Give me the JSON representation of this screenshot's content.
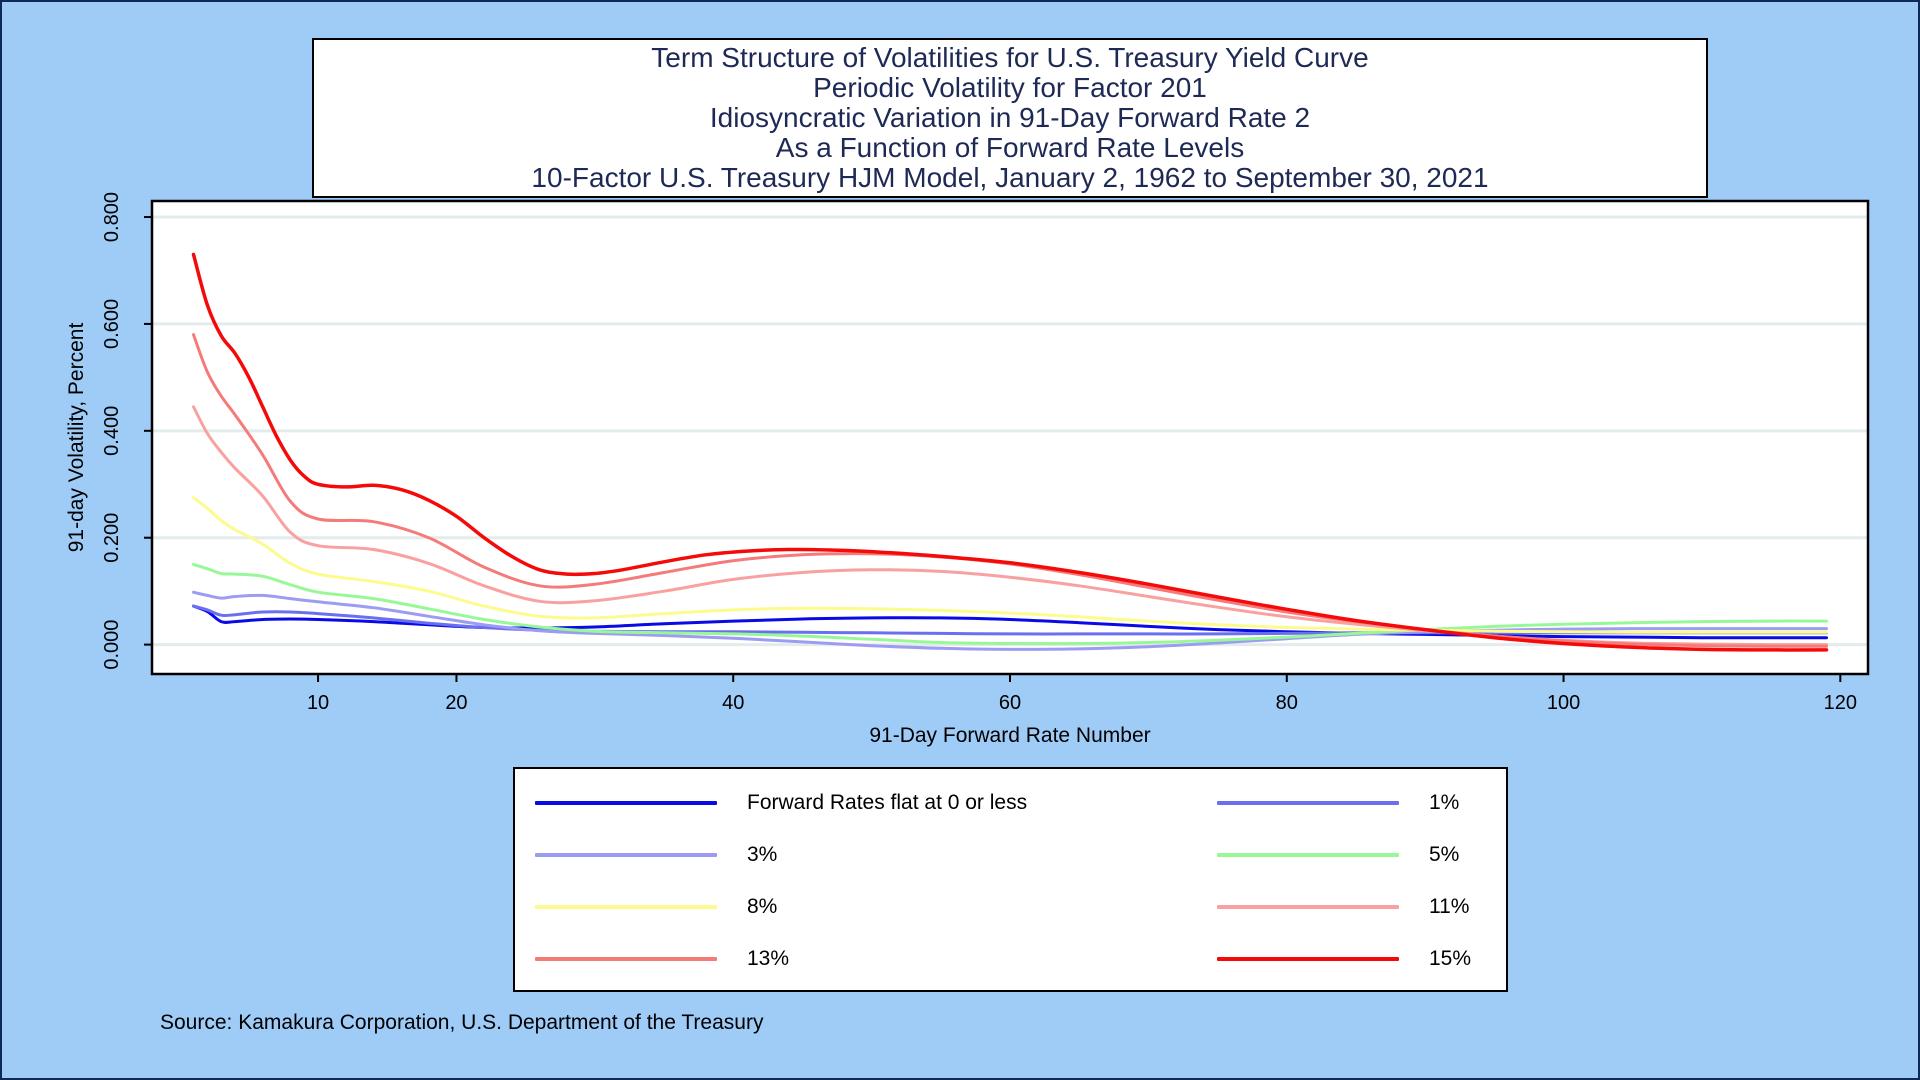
{
  "title_lines": [
    "Term Structure of Volatilities for U.S. Treasury Yield Curve",
    "Periodic Volatility for Factor 201",
    "Idiosyncratic Variation in 91-Day Forward Rate 2",
    "As a Function of Forward Rate Levels",
    "10-Factor U.S. Treasury HJM Model, January 2, 1962 to September 30, 2021"
  ],
  "source": "Source: Kamakura Corporation, U.S. Department of the Treasury",
  "chart_data": {
    "type": "line",
    "xlabel": "91-Day Forward Rate Number",
    "ylabel": "91-day Volatility, Percent",
    "xlim": [
      -2,
      122
    ],
    "ylim": [
      -0.055,
      0.83
    ],
    "xticks": [
      10,
      20,
      40,
      60,
      80,
      100,
      120
    ],
    "yticks": [
      0.0,
      0.2,
      0.4,
      0.6,
      0.8
    ],
    "ytick_labels": [
      "0.000",
      "0.200",
      "0.400",
      "0.600",
      "0.800"
    ],
    "grid": "horizontal",
    "legend_position": "bottom",
    "series": [
      {
        "name": "Forward Rates flat at 0 or less",
        "color": "#0a0ae6",
        "width": 3,
        "points": [
          [
            1,
            0.072
          ],
          [
            2,
            0.062
          ],
          [
            3,
            0.043
          ],
          [
            4,
            0.043
          ],
          [
            6,
            0.047
          ],
          [
            8,
            0.048
          ],
          [
            10,
            0.047
          ],
          [
            14,
            0.043
          ],
          [
            18,
            0.037
          ],
          [
            22,
            0.032
          ],
          [
            26,
            0.031
          ],
          [
            30,
            0.033
          ],
          [
            35,
            0.039
          ],
          [
            40,
            0.044
          ],
          [
            45,
            0.048
          ],
          [
            50,
            0.05
          ],
          [
            55,
            0.05
          ],
          [
            60,
            0.047
          ],
          [
            65,
            0.041
          ],
          [
            70,
            0.034
          ],
          [
            75,
            0.028
          ],
          [
            80,
            0.024
          ],
          [
            85,
            0.021
          ],
          [
            90,
            0.019
          ],
          [
            95,
            0.017
          ],
          [
            100,
            0.015
          ],
          [
            105,
            0.014
          ],
          [
            110,
            0.013
          ],
          [
            115,
            0.013
          ],
          [
            119,
            0.013
          ]
        ]
      },
      {
        "name": "1%",
        "color": "#6a6ef0",
        "width": 3,
        "points": [
          [
            1,
            0.072
          ],
          [
            2,
            0.065
          ],
          [
            3,
            0.055
          ],
          [
            4,
            0.056
          ],
          [
            6,
            0.061
          ],
          [
            8,
            0.061
          ],
          [
            10,
            0.058
          ],
          [
            14,
            0.05
          ],
          [
            18,
            0.04
          ],
          [
            22,
            0.032
          ],
          [
            26,
            0.027
          ],
          [
            30,
            0.025
          ],
          [
            35,
            0.024
          ],
          [
            40,
            0.024
          ],
          [
            45,
            0.023
          ],
          [
            50,
            0.022
          ],
          [
            55,
            0.021
          ],
          [
            60,
            0.02
          ],
          [
            65,
            0.02
          ],
          [
            70,
            0.02
          ],
          [
            75,
            0.02
          ],
          [
            80,
            0.021
          ],
          [
            85,
            0.022
          ],
          [
            90,
            0.022
          ],
          [
            95,
            0.022
          ],
          [
            100,
            0.022
          ],
          [
            105,
            0.022
          ],
          [
            110,
            0.022
          ],
          [
            115,
            0.022
          ],
          [
            119,
            0.022
          ]
        ]
      },
      {
        "name": "3%",
        "color": "#9d9cf3",
        "width": 3,
        "points": [
          [
            1,
            0.098
          ],
          [
            2,
            0.092
          ],
          [
            3,
            0.087
          ],
          [
            4,
            0.09
          ],
          [
            6,
            0.092
          ],
          [
            8,
            0.086
          ],
          [
            10,
            0.08
          ],
          [
            14,
            0.069
          ],
          [
            18,
            0.053
          ],
          [
            22,
            0.037
          ],
          [
            26,
            0.026
          ],
          [
            30,
            0.021
          ],
          [
            35,
            0.017
          ],
          [
            40,
            0.012
          ],
          [
            45,
            0.005
          ],
          [
            50,
            -0.002
          ],
          [
            55,
            -0.007
          ],
          [
            60,
            -0.009
          ],
          [
            65,
            -0.008
          ],
          [
            70,
            -0.004
          ],
          [
            75,
            0.003
          ],
          [
            80,
            0.011
          ],
          [
            85,
            0.019
          ],
          [
            90,
            0.024
          ],
          [
            95,
            0.027
          ],
          [
            100,
            0.029
          ],
          [
            105,
            0.03
          ],
          [
            110,
            0.03
          ],
          [
            115,
            0.03
          ],
          [
            119,
            0.03
          ]
        ]
      },
      {
        "name": "5%",
        "color": "#98f898",
        "width": 3,
        "points": [
          [
            1,
            0.15
          ],
          [
            2,
            0.142
          ],
          [
            3,
            0.133
          ],
          [
            4,
            0.132
          ],
          [
            6,
            0.128
          ],
          [
            8,
            0.112
          ],
          [
            10,
            0.098
          ],
          [
            14,
            0.086
          ],
          [
            18,
            0.067
          ],
          [
            22,
            0.047
          ],
          [
            26,
            0.033
          ],
          [
            30,
            0.025
          ],
          [
            35,
            0.022
          ],
          [
            40,
            0.02
          ],
          [
            45,
            0.016
          ],
          [
            50,
            0.01
          ],
          [
            55,
            0.004
          ],
          [
            60,
            0.002
          ],
          [
            65,
            0.002
          ],
          [
            70,
            0.004
          ],
          [
            75,
            0.008
          ],
          [
            80,
            0.014
          ],
          [
            85,
            0.021
          ],
          [
            90,
            0.028
          ],
          [
            95,
            0.034
          ],
          [
            100,
            0.038
          ],
          [
            105,
            0.041
          ],
          [
            110,
            0.043
          ],
          [
            115,
            0.044
          ],
          [
            119,
            0.044
          ]
        ]
      },
      {
        "name": "8%",
        "color": "#fbfb8e",
        "width": 3,
        "points": [
          [
            1,
            0.275
          ],
          [
            2,
            0.255
          ],
          [
            3,
            0.232
          ],
          [
            4,
            0.215
          ],
          [
            6,
            0.188
          ],
          [
            8,
            0.152
          ],
          [
            10,
            0.132
          ],
          [
            14,
            0.118
          ],
          [
            18,
            0.1
          ],
          [
            22,
            0.072
          ],
          [
            26,
            0.053
          ],
          [
            30,
            0.05
          ],
          [
            35,
            0.058
          ],
          [
            40,
            0.065
          ],
          [
            45,
            0.068
          ],
          [
            50,
            0.067
          ],
          [
            55,
            0.064
          ],
          [
            60,
            0.059
          ],
          [
            65,
            0.052
          ],
          [
            70,
            0.044
          ],
          [
            75,
            0.037
          ],
          [
            80,
            0.032
          ],
          [
            85,
            0.029
          ],
          [
            90,
            0.027
          ],
          [
            95,
            0.025
          ],
          [
            100,
            0.024
          ],
          [
            105,
            0.023
          ],
          [
            110,
            0.023
          ],
          [
            115,
            0.023
          ],
          [
            119,
            0.023
          ]
        ]
      },
      {
        "name": "11%",
        "color": "#f9a0a0",
        "width": 3,
        "points": [
          [
            1,
            0.445
          ],
          [
            2,
            0.395
          ],
          [
            3,
            0.36
          ],
          [
            4,
            0.33
          ],
          [
            6,
            0.278
          ],
          [
            8,
            0.21
          ],
          [
            10,
            0.185
          ],
          [
            14,
            0.178
          ],
          [
            18,
            0.152
          ],
          [
            22,
            0.11
          ],
          [
            26,
            0.081
          ],
          [
            30,
            0.082
          ],
          [
            35,
            0.1
          ],
          [
            40,
            0.122
          ],
          [
            45,
            0.135
          ],
          [
            50,
            0.14
          ],
          [
            55,
            0.137
          ],
          [
            60,
            0.126
          ],
          [
            65,
            0.11
          ],
          [
            70,
            0.09
          ],
          [
            75,
            0.07
          ],
          [
            80,
            0.052
          ],
          [
            85,
            0.038
          ],
          [
            90,
            0.026
          ],
          [
            95,
            0.016
          ],
          [
            100,
            0.008
          ],
          [
            105,
            0.003
          ],
          [
            110,
            0.001
          ],
          [
            115,
            0.0
          ],
          [
            119,
            0.0
          ]
        ]
      },
      {
        "name": "13%",
        "color": "#f57a7a",
        "width": 3,
        "points": [
          [
            1,
            0.58
          ],
          [
            2,
            0.51
          ],
          [
            3,
            0.465
          ],
          [
            4,
            0.43
          ],
          [
            6,
            0.355
          ],
          [
            8,
            0.268
          ],
          [
            10,
            0.235
          ],
          [
            14,
            0.23
          ],
          [
            18,
            0.2
          ],
          [
            22,
            0.145
          ],
          [
            26,
            0.11
          ],
          [
            30,
            0.113
          ],
          [
            35,
            0.135
          ],
          [
            40,
            0.157
          ],
          [
            45,
            0.168
          ],
          [
            50,
            0.17
          ],
          [
            55,
            0.164
          ],
          [
            60,
            0.151
          ],
          [
            65,
            0.131
          ],
          [
            70,
            0.107
          ],
          [
            75,
            0.083
          ],
          [
            80,
            0.061
          ],
          [
            85,
            0.043
          ],
          [
            90,
            0.028
          ],
          [
            95,
            0.016
          ],
          [
            100,
            0.007
          ],
          [
            105,
            0.001
          ],
          [
            110,
            -0.002
          ],
          [
            115,
            -0.003
          ],
          [
            119,
            -0.003
          ]
        ]
      },
      {
        "name": "15%",
        "color": "#f50a0a",
        "width": 3.5,
        "points": [
          [
            1,
            0.73
          ],
          [
            2,
            0.635
          ],
          [
            3,
            0.578
          ],
          [
            4,
            0.545
          ],
          [
            5,
            0.5
          ],
          [
            6,
            0.445
          ],
          [
            7,
            0.39
          ],
          [
            8,
            0.345
          ],
          [
            9,
            0.315
          ],
          [
            10,
            0.3
          ],
          [
            12,
            0.295
          ],
          [
            14,
            0.298
          ],
          [
            16,
            0.29
          ],
          [
            18,
            0.27
          ],
          [
            20,
            0.24
          ],
          [
            22,
            0.2
          ],
          [
            24,
            0.165
          ],
          [
            26,
            0.14
          ],
          [
            28,
            0.132
          ],
          [
            30,
            0.133
          ],
          [
            32,
            0.14
          ],
          [
            35,
            0.155
          ],
          [
            38,
            0.168
          ],
          [
            41,
            0.175
          ],
          [
            44,
            0.178
          ],
          [
            47,
            0.177
          ],
          [
            50,
            0.174
          ],
          [
            55,
            0.165
          ],
          [
            60,
            0.153
          ],
          [
            65,
            0.135
          ],
          [
            70,
            0.113
          ],
          [
            75,
            0.089
          ],
          [
            80,
            0.066
          ],
          [
            85,
            0.045
          ],
          [
            90,
            0.028
          ],
          [
            95,
            0.013
          ],
          [
            100,
            0.002
          ],
          [
            105,
            -0.005
          ],
          [
            110,
            -0.009
          ],
          [
            115,
            -0.01
          ],
          [
            119,
            -0.01
          ]
        ]
      }
    ]
  }
}
